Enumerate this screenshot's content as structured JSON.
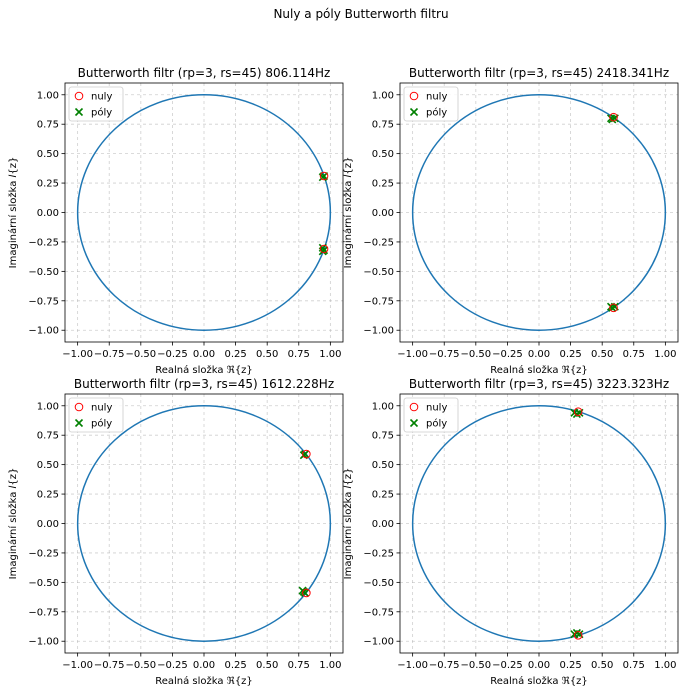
{
  "figure": {
    "suptitle": "Nuly a póly Butterworth filtru"
  },
  "colors": {
    "unit_circle": "#1f77b4",
    "zeros": "#ff0000",
    "poles": "#008000",
    "grid": "#b0b0b0"
  },
  "chart_data": [
    {
      "type": "scatter",
      "title": "Butterworth filtr (rp=3, rs=45) 806.114Hz",
      "xlabel": "Realná složka ℜ{z}",
      "ylabel": "Imaginární složka 𝐼{z}",
      "xlim": [
        -1.1,
        1.1
      ],
      "ylim": [
        -1.1,
        1.1
      ],
      "xticks": [
        "−1.00",
        "−0.75",
        "−0.50",
        "−0.25",
        "0.00",
        "0.25",
        "0.50",
        "0.75",
        "1.00"
      ],
      "yticks": [
        "−1.00",
        "−0.75",
        "−0.50",
        "−0.25",
        "0.00",
        "0.25",
        "0.50",
        "0.75",
        "1.00"
      ],
      "grid": true,
      "legend": "upper-left",
      "unit_circle": true,
      "series": [
        {
          "name": "nuly",
          "marker": "circle",
          "points": [
            [
              0.95,
              0.31
            ],
            [
              0.95,
              -0.31
            ]
          ]
        },
        {
          "name": "póly",
          "marker": "x",
          "points": [
            [
              0.94,
              0.3
            ],
            [
              0.95,
              0.31
            ],
            [
              0.94,
              -0.3
            ],
            [
              0.95,
              -0.32
            ],
            [
              0.94,
              -0.33
            ]
          ]
        }
      ]
    },
    {
      "type": "scatter",
      "title": "Butterworth filtr (rp=3, rs=45) 2418.341Hz",
      "xlabel": "Realná složka ℜ{z}",
      "ylabel": "Imaginární složka 𝐼{z}",
      "xlim": [
        -1.1,
        1.1
      ],
      "ylim": [
        -1.1,
        1.1
      ],
      "xticks": [
        "−1.00",
        "−0.75",
        "−0.50",
        "−0.25",
        "0.00",
        "0.25",
        "0.50",
        "0.75",
        "1.00"
      ],
      "yticks": [
        "−1.00",
        "−0.75",
        "−0.50",
        "−0.25",
        "0.00",
        "0.25",
        "0.50",
        "0.75",
        "1.00"
      ],
      "grid": true,
      "legend": "upper-left",
      "unit_circle": true,
      "series": [
        {
          "name": "nuly",
          "marker": "circle",
          "points": [
            [
              0.59,
              0.81
            ],
            [
              0.59,
              -0.81
            ]
          ]
        },
        {
          "name": "póly",
          "marker": "x",
          "points": [
            [
              0.57,
              0.8
            ],
            [
              0.6,
              0.8
            ],
            [
              0.58,
              0.79
            ],
            [
              0.57,
              -0.8
            ],
            [
              0.6,
              -0.8
            ],
            [
              0.58,
              -0.81
            ]
          ]
        }
      ]
    },
    {
      "type": "scatter",
      "title": "Butterworth filtr (rp=3, rs=45) 1612.228Hz",
      "xlabel": "Realná složka ℜ{z}",
      "ylabel": "Imaginární složka 𝐼{z}",
      "xlim": [
        -1.1,
        1.1
      ],
      "ylim": [
        -1.1,
        1.1
      ],
      "xticks": [
        "−1.00",
        "−0.75",
        "−0.50",
        "−0.25",
        "0.00",
        "0.25",
        "0.50",
        "0.75",
        "1.00"
      ],
      "yticks": [
        "−1.00",
        "−0.75",
        "−0.50",
        "−0.25",
        "0.00",
        "0.25",
        "0.50",
        "0.75",
        "1.00"
      ],
      "grid": true,
      "legend": "upper-left",
      "unit_circle": true,
      "series": [
        {
          "name": "nuly",
          "marker": "circle",
          "points": [
            [
              0.81,
              0.59
            ],
            [
              0.81,
              -0.59
            ]
          ]
        },
        {
          "name": "póly",
          "marker": "x",
          "points": [
            [
              0.79,
              0.58
            ],
            [
              0.8,
              0.59
            ],
            [
              0.79,
              -0.58
            ],
            [
              0.8,
              -0.59
            ],
            [
              0.78,
              -0.57
            ]
          ]
        }
      ]
    },
    {
      "type": "scatter",
      "title": "Butterworth filtr (rp=3, rs=45) 3223.323Hz",
      "xlabel": "Realná složka ℜ{z}",
      "ylabel": "Imaginární složka 𝐼{z}",
      "xlim": [
        -1.1,
        1.1
      ],
      "ylim": [
        -1.1,
        1.1
      ],
      "xticks": [
        "−1.00",
        "−0.75",
        "−0.50",
        "−0.25",
        "0.00",
        "0.25",
        "0.50",
        "0.75",
        "1.00"
      ],
      "yticks": [
        "−1.00",
        "−0.75",
        "−0.50",
        "−0.25",
        "0.00",
        "0.25",
        "0.50",
        "0.75",
        "1.00"
      ],
      "grid": true,
      "legend": "upper-left",
      "unit_circle": true,
      "series": [
        {
          "name": "nuly",
          "marker": "circle",
          "points": [
            [
              0.31,
              0.95
            ],
            [
              0.31,
              -0.95
            ]
          ]
        },
        {
          "name": "póly",
          "marker": "x",
          "points": [
            [
              0.28,
              0.94
            ],
            [
              0.32,
              0.94
            ],
            [
              0.3,
              0.93
            ],
            [
              0.28,
              -0.94
            ],
            [
              0.32,
              -0.94
            ],
            [
              0.3,
              -0.93
            ]
          ]
        }
      ]
    }
  ]
}
